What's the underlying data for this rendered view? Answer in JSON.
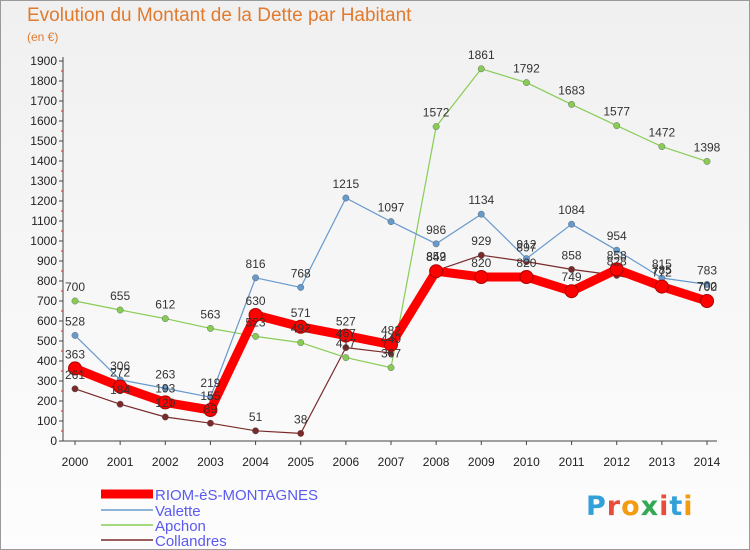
{
  "chart_data": {
    "type": "line",
    "title": "Evolution du Montant de la Dette par Habitant",
    "subtitle": "(en €)",
    "x": [
      "2000",
      "2001",
      "2002",
      "2003",
      "2004",
      "2005",
      "2006",
      "2007",
      "2008",
      "2009",
      "2010",
      "2011",
      "2012",
      "2013",
      "2014"
    ],
    "ylim": [
      0,
      1900
    ],
    "yticks": [
      0,
      100,
      200,
      300,
      400,
      500,
      600,
      700,
      800,
      900,
      1000,
      1100,
      1200,
      1300,
      1400,
      1500,
      1600,
      1700,
      1800,
      1900
    ],
    "grid": false,
    "legend_position": "bottom-left",
    "series": [
      {
        "name": "RIOM-èS-MONTAGNES",
        "color": "#ff0000",
        "values": [
          363,
          272,
          193,
          155,
          630,
          571,
          527,
          482,
          849,
          820,
          820,
          749,
          858,
          772,
          700
        ],
        "labels": [
          "363",
          "272",
          "193",
          "155",
          "630",
          "571",
          "527",
          "482",
          "849",
          "820",
          "820",
          "749",
          "858",
          "772",
          "700"
        ]
      },
      {
        "name": "Valette",
        "color": "#6699cc",
        "values": [
          528,
          306,
          263,
          219,
          816,
          768,
          1215,
          1097,
          986,
          1134,
          912,
          1084,
          954,
          815,
          783
        ],
        "labels": [
          "528",
          "306",
          "263",
          "219",
          "816",
          "768",
          "1215",
          "1097",
          "986",
          "1134",
          "912",
          "1084",
          "954",
          "815",
          "783"
        ]
      },
      {
        "name": "Apchon",
        "color": "#88cc55",
        "values": [
          700,
          655,
          612,
          563,
          523,
          492,
          417,
          367,
          1572,
          1861,
          1792,
          1683,
          1577,
          1472,
          1398
        ],
        "labels": [
          "700",
          "655",
          "612",
          "563",
          "523",
          "492",
          "417",
          "367",
          "1572",
          "1861",
          "1792",
          "1683",
          "1577",
          "1472",
          "1398"
        ]
      },
      {
        "name": "Collandres",
        "color": "#7a2a2a",
        "values": [
          261,
          184,
          120,
          89,
          51,
          38,
          467,
          440,
          852,
          929,
          897,
          858,
          828,
          785,
          702
        ],
        "labels": [
          "261",
          "184",
          "120",
          "89",
          "51",
          "38",
          "467",
          "440",
          "852",
          "929",
          "897",
          "858",
          "828",
          "785",
          "702"
        ]
      }
    ]
  },
  "logo": {
    "letters": [
      "P",
      "r",
      "o",
      "x",
      "i",
      "t",
      "i"
    ],
    "colors": [
      "#33a0d8",
      "#e84c3d",
      "#f39c12",
      "#34a853",
      "#e84c3d",
      "#33a0d8",
      "#f39c12"
    ]
  }
}
